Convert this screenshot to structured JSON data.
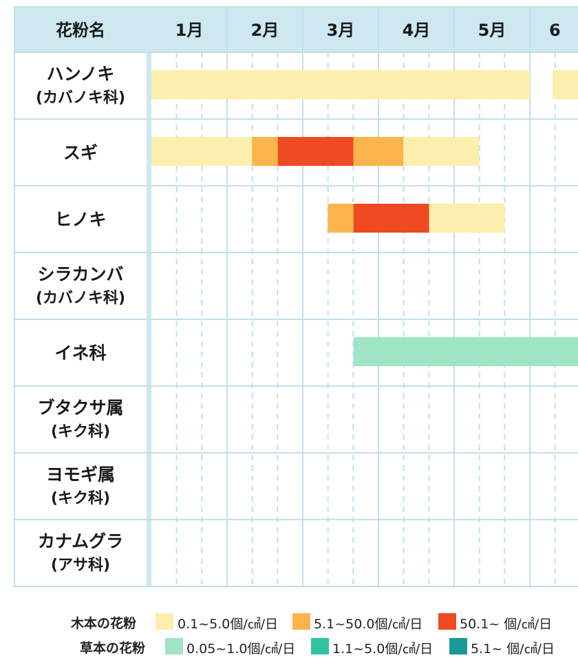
{
  "header": {
    "corner_label": "花粉名"
  },
  "chart_data": {
    "type": "bar",
    "months": [
      "1月",
      "2月",
      "3月",
      "4月",
      "5月",
      "6"
    ],
    "rows": [
      {
        "label_lines": [
          "ハンノキ",
          "(カバノキ科)"
        ],
        "segments": [
          {
            "from": 1.0,
            "to": 6.0,
            "level": "wood_low"
          },
          {
            "from": 6.3,
            "to": 7.0,
            "level": "wood_low"
          }
        ]
      },
      {
        "label_lines": [
          "スギ"
        ],
        "segments": [
          {
            "from": 1.0,
            "to": 2.33,
            "level": "wood_low"
          },
          {
            "from": 2.33,
            "to": 2.67,
            "level": "wood_mid"
          },
          {
            "from": 2.67,
            "to": 3.67,
            "level": "wood_high"
          },
          {
            "from": 3.67,
            "to": 4.33,
            "level": "wood_mid"
          },
          {
            "from": 4.33,
            "to": 5.33,
            "level": "wood_low"
          }
        ]
      },
      {
        "label_lines": [
          "ヒノキ"
        ],
        "segments": [
          {
            "from": 3.33,
            "to": 3.67,
            "level": "wood_mid"
          },
          {
            "from": 3.67,
            "to": 4.67,
            "level": "wood_high"
          },
          {
            "from": 4.67,
            "to": 5.67,
            "level": "wood_low"
          }
        ]
      },
      {
        "label_lines": [
          "シラカンバ",
          "(カバノキ科)"
        ],
        "segments": []
      },
      {
        "label_lines": [
          "イネ科"
        ],
        "segments": [
          {
            "from": 3.67,
            "to": 7.0,
            "level": "grass_low"
          }
        ]
      },
      {
        "label_lines": [
          "ブタクサ属",
          "(キク科)"
        ],
        "segments": []
      },
      {
        "label_lines": [
          "ヨモギ属",
          "(キク科)"
        ],
        "segments": []
      },
      {
        "label_lines": [
          "カナムグラ",
          "(アサ科)"
        ],
        "segments": []
      }
    ],
    "levels": {
      "wood_low": {
        "color": "#fcefad",
        "label": "0.1~5.0個/㎠/日"
      },
      "wood_mid": {
        "color": "#f9b54c",
        "label": "5.1~50.0個/㎠/日"
      },
      "wood_high": {
        "color": "#ee4b22",
        "label": "50.1~ 個/㎠/日"
      },
      "grass_low": {
        "color": "#9ee5c4",
        "label": "0.05~1.0個/㎠/日"
      },
      "grass_mid": {
        "color": "#2fc5a4",
        "label": "1.1~5.0個/㎠/日"
      },
      "grass_high": {
        "color": "#199a96",
        "label": "5.1~ 個/㎠/日"
      }
    }
  },
  "legend": {
    "wood": {
      "title": "木本の花粉",
      "keys": [
        "wood_low",
        "wood_mid",
        "wood_high"
      ]
    },
    "grass": {
      "title": "草本の花粉",
      "keys": [
        "grass_low",
        "grass_mid",
        "grass_high"
      ]
    }
  },
  "colors": {
    "header_bg": "#cde8f0",
    "row_bg": "#ffffff",
    "grid_line": "#bfe0ea",
    "dash_line": "#bfe0ea"
  }
}
